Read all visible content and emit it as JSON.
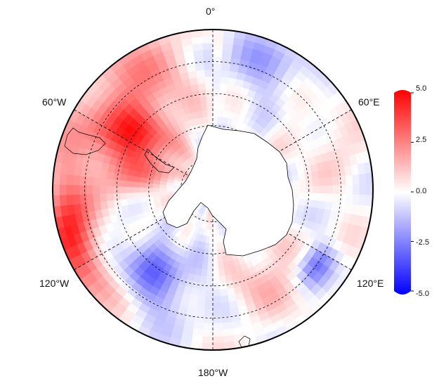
{
  "map": {
    "projection": "south-polar-stereographic",
    "colormap": [
      "#0000ff",
      "#ffffff",
      "#ff0000"
    ],
    "value_range": [
      -5.0,
      5.0
    ],
    "longitude_labels": {
      "top": "0°",
      "upper_left": "60°W",
      "upper_right": "60°E",
      "lower_left": "120°W",
      "lower_right": "120°E",
      "bottom": "180°W"
    },
    "latitude_circles": 4,
    "meridian_spacing_deg": 30
  },
  "colorbar": {
    "ticks": [
      "5.0",
      "2.5",
      "0.0",
      "-2.5",
      "-5.0"
    ],
    "values": [
      5.0,
      2.5,
      0.0,
      -2.5,
      -5.0
    ]
  }
}
